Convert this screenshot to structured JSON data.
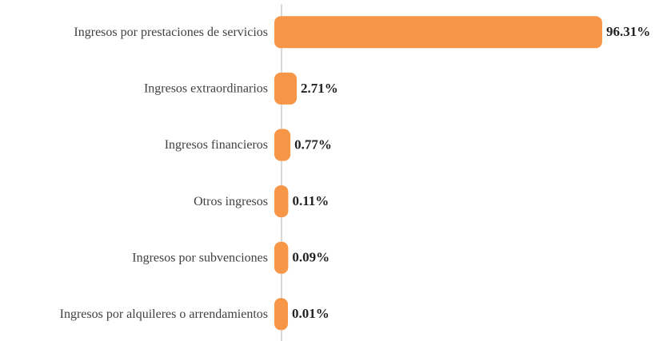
{
  "chart_data": {
    "type": "hbar",
    "categories": [
      "Ingresos por prestaciones de servicios",
      "Ingresos extraordinarios",
      "Ingresos financieros",
      "Otros ingresos",
      "Ingresos por subvenciones",
      "Ingresos por alquileres o arrendamientos"
    ],
    "values": [
      96.31,
      2.71,
      0.77,
      0.11,
      0.09,
      0.01
    ],
    "value_labels": [
      "96.31%",
      "2.71%",
      "0.77%",
      "0.11%",
      "0.09%",
      "0.01%"
    ],
    "color": "#f79646",
    "xlim": [
      0,
      100
    ]
  }
}
